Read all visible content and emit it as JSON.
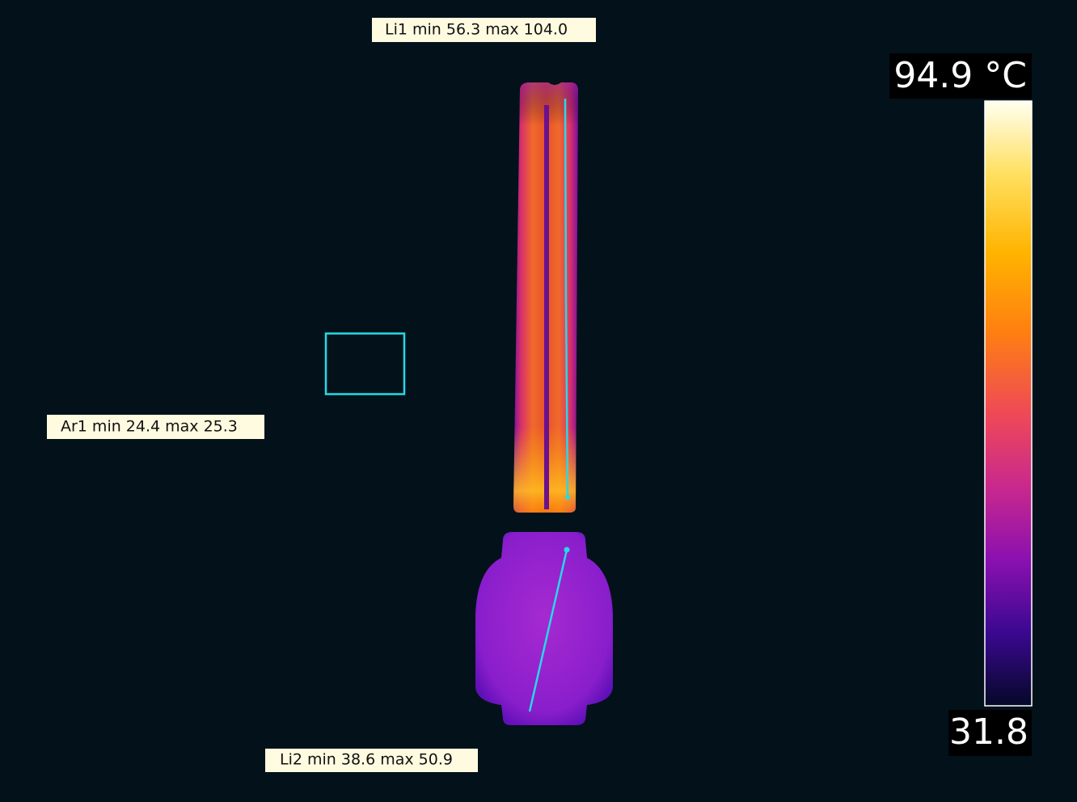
{
  "measurements": {
    "li1": "Li1 min 56.3 max 104.0",
    "ar1": "Ar1 min 24.4 max 25.3",
    "li2": "Li2 min 38.6 max 50.9"
  },
  "scale": {
    "max": "94.9 °C",
    "min": "31.8"
  }
}
